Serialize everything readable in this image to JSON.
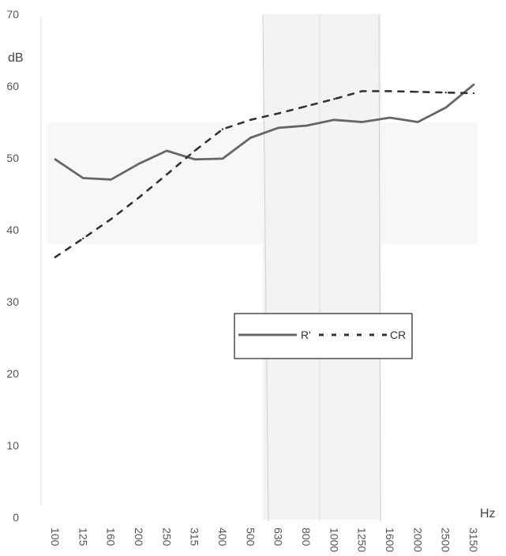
{
  "chart_data": {
    "type": "line",
    "xlabel": "Hz",
    "ylabel": "dB",
    "ylim": [
      0,
      70
    ],
    "y_ticks": [
      0,
      10,
      20,
      30,
      40,
      50,
      60,
      70
    ],
    "categories": [
      "100",
      "125",
      "160",
      "200",
      "250",
      "315",
      "400",
      "500",
      "630",
      "800",
      "1000",
      "1250",
      "1600",
      "2000",
      "2500",
      "3150"
    ],
    "series": [
      {
        "name": "R'",
        "style": "solid",
        "color": "#666666",
        "values": [
          49.8,
          47.2,
          47.0,
          49.2,
          51.0,
          49.8,
          49.9,
          52.8,
          54.2,
          54.5,
          55.3,
          55.0,
          55.6,
          55.0,
          57.0,
          60.2
        ]
      },
      {
        "name": "CR",
        "style": "dashed",
        "color": "#333333",
        "values": [
          36.2,
          38.8,
          41.5,
          44.5,
          47.7,
          51.0,
          54.0,
          55.3,
          56.2,
          57.2,
          58.2,
          59.3,
          59.3,
          59.2,
          59.1,
          59.0
        ]
      }
    ],
    "grid": false,
    "legend_position": "center-right"
  }
}
